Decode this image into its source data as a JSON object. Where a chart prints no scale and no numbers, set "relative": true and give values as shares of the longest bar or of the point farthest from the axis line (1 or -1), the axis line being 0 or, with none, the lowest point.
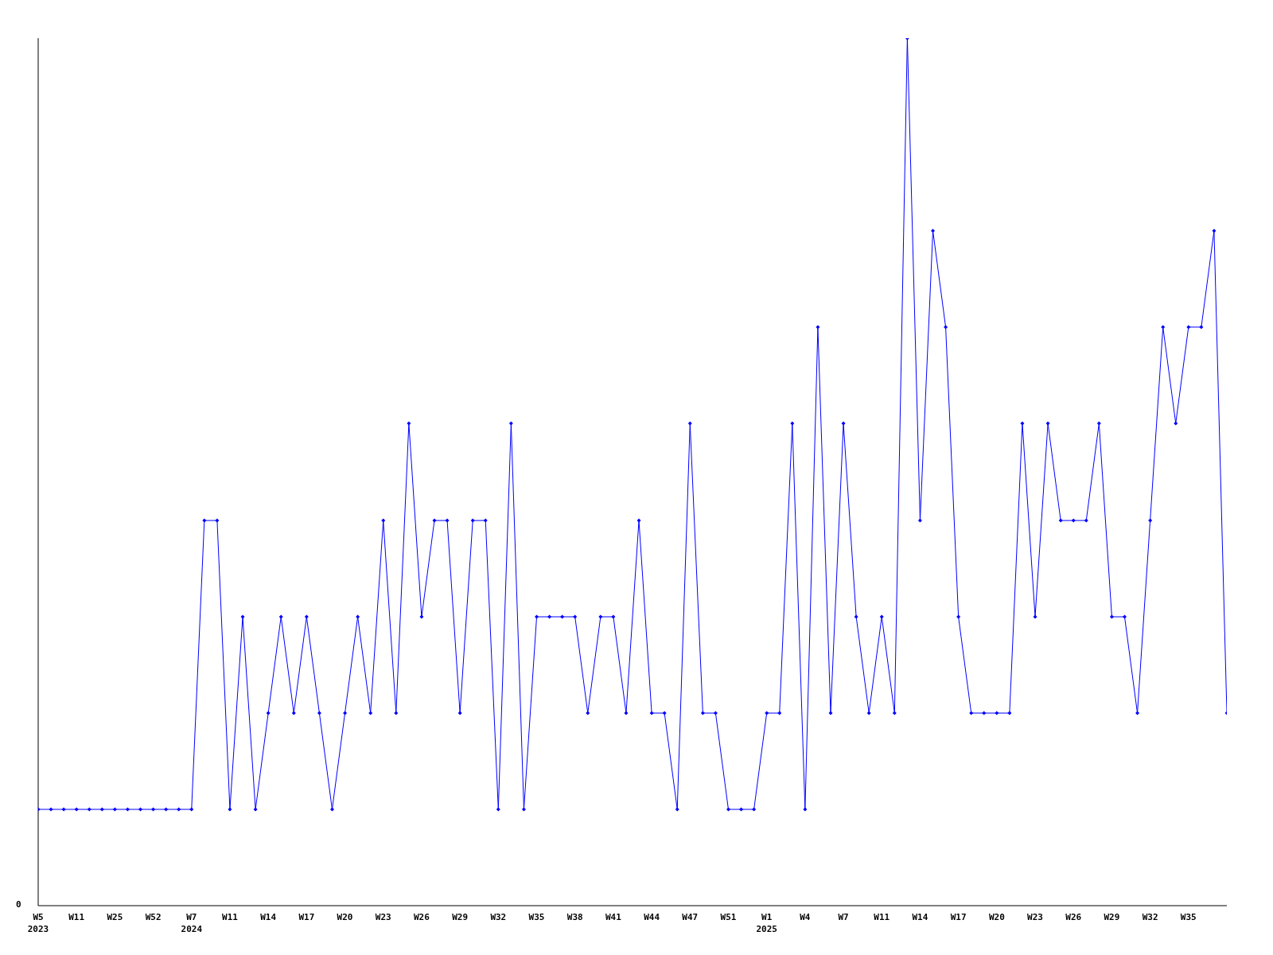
{
  "chart_data": {
    "type": "line",
    "relative": true,
    "marker": "diamond",
    "grid": false,
    "legend": false,
    "annotations": [
      "0"
    ],
    "categories": [
      "W5\n2023",
      null,
      null,
      "W11",
      null,
      null,
      "W25",
      null,
      null,
      "W52",
      null,
      null,
      "W7\n2024",
      null,
      null,
      "W11",
      null,
      null,
      "W14",
      null,
      null,
      "W17",
      null,
      null,
      "W20",
      null,
      null,
      "W23",
      null,
      null,
      "W26",
      null,
      null,
      "W29",
      null,
      null,
      "W32",
      null,
      null,
      "W35",
      null,
      null,
      "W38",
      null,
      null,
      "W41",
      null,
      null,
      "W44",
      null,
      null,
      "W47",
      null,
      null,
      "W51",
      null,
      null,
      "W1\n2025",
      null,
      null,
      "W4",
      null,
      null,
      "W7",
      null,
      null,
      "W11",
      null,
      null,
      "W14",
      null,
      null,
      "W17",
      null,
      null,
      "W20",
      null,
      null,
      "W23",
      null,
      null,
      "W26",
      null,
      null,
      "W29",
      null,
      null,
      "W32",
      null,
      null,
      "W35",
      null,
      null,
      null
    ],
    "series": [
      {
        "color": "#0000ff",
        "values": [
          0.111,
          0.111,
          0.111,
          0.111,
          0.111,
          0.111,
          0.111,
          0.111,
          0.111,
          0.111,
          0.111,
          0.111,
          0.111,
          0.444,
          0.444,
          0.111,
          0.333,
          0.111,
          0.222,
          0.333,
          0.222,
          0.333,
          0.222,
          0.111,
          0.222,
          0.333,
          0.222,
          0.444,
          0.222,
          0.556,
          0.333,
          0.444,
          0.444,
          0.222,
          0.444,
          0.444,
          0.111,
          0.556,
          0.111,
          0.333,
          0.333,
          0.333,
          0.333,
          0.222,
          0.333,
          0.333,
          0.222,
          0.444,
          0.222,
          0.222,
          0.111,
          0.556,
          0.222,
          0.222,
          0.111,
          0.111,
          0.111,
          0.222,
          0.222,
          0.556,
          0.111,
          0.667,
          0.222,
          0.556,
          0.333,
          0.222,
          0.333,
          0.222,
          1,
          0.444,
          0.778,
          0.667,
          0.333,
          0.222,
          0.222,
          0.222,
          0.222,
          0.556,
          0.333,
          0.556,
          0.444,
          0.444,
          0.444,
          0.556,
          0.333,
          0.333,
          0.222,
          0.444,
          0.667,
          0.556,
          0.667,
          0.667,
          0.778,
          0.222
        ]
      }
    ]
  }
}
